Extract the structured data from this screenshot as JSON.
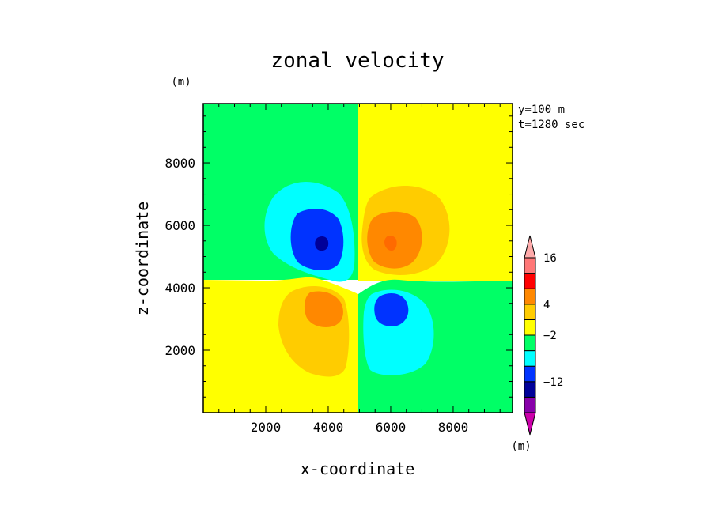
{
  "chart_data": {
    "type": "heatmap",
    "title": "zonal velocity",
    "xlabel": "x-coordinate",
    "ylabel": "z-coordinate",
    "x_unit": "(m)",
    "y_unit": "(m)",
    "annotations": [
      "y=100 m",
      "t=1280 sec"
    ],
    "xlim": [
      0,
      9900
    ],
    "ylim": [
      0,
      9900
    ],
    "x_ticks": [
      2000,
      4000,
      6000,
      8000
    ],
    "y_ticks": [
      2000,
      4000,
      6000,
      8000
    ],
    "x_tick_labels": [
      "2000",
      "4000",
      "6000",
      "8000"
    ],
    "y_tick_labels": [
      "2000",
      "4000",
      "6000",
      "8000"
    ],
    "colorbar": {
      "unit": "(m)",
      "levels": [
        -20,
        -16,
        -12,
        -8,
        -4,
        -2,
        2,
        4,
        8,
        12,
        16,
        20
      ],
      "tick_labels": [
        {
          "value": 16,
          "label": "16"
        },
        {
          "value": 4,
          "label": "4"
        },
        {
          "value": -2,
          "label": "−2"
        },
        {
          "value": -12,
          "label": "−12"
        }
      ],
      "colors": [
        "#cc00aa",
        "#8800aa",
        "#000099",
        "#0033ff",
        "#00ffff",
        "#00ff66",
        "#ffff00",
        "#ffcc00",
        "#ff8800",
        "#ff0000",
        "#ff7777",
        "#ffaaaa"
      ]
    },
    "field": {
      "background": [
        {
          "region": "upper-left",
          "range": [
            -2,
            2
          ],
          "color": "#00ff66"
        },
        {
          "region": "upper-right",
          "range": [
            2,
            4
          ],
          "color": "#ffff00"
        },
        {
          "region": "lower-left",
          "range": [
            2,
            4
          ],
          "color": "#ffff00"
        },
        {
          "region": "lower-right",
          "range": [
            -2,
            2
          ],
          "color": "#00ff66"
        }
      ],
      "extrema": [
        {
          "label": "negative core upper-left",
          "x": 3850,
          "z": 5500,
          "min_level": -12,
          "colors": [
            "#00ffff",
            "#0033ff",
            "#000099"
          ]
        },
        {
          "label": "positive core upper-right",
          "x": 6150,
          "z": 5550,
          "max_level": 12,
          "colors": [
            "#ffcc00",
            "#ff8800"
          ]
        },
        {
          "label": "positive core lower-left",
          "x": 3900,
          "z": 3300,
          "max_level": 8,
          "colors": [
            "#ffcc00",
            "#ff8800"
          ]
        },
        {
          "label": "negative core lower-right",
          "x": 6150,
          "z": 3300,
          "min_level": -8,
          "colors": [
            "#00ffff",
            "#0033ff"
          ]
        }
      ]
    }
  }
}
